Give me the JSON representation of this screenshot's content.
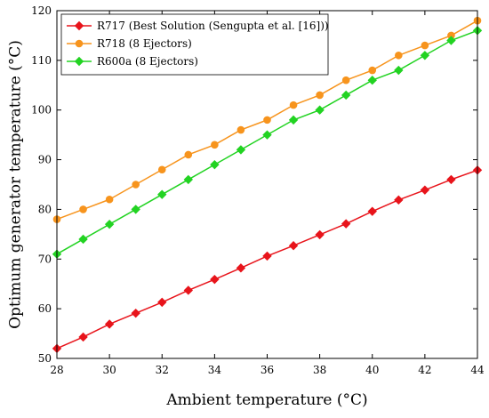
{
  "chart_data": {
    "type": "line",
    "title": "",
    "xlabel": "Ambient temperature (°C)",
    "ylabel": "Optimum generator temperature (°C)",
    "xlim": [
      28,
      44
    ],
    "ylim": [
      50,
      120
    ],
    "xticks": [
      28,
      30,
      32,
      34,
      36,
      38,
      40,
      42,
      44
    ],
    "yticks": [
      50,
      60,
      70,
      80,
      90,
      100,
      110,
      120
    ],
    "grid": false,
    "legend_position": "top-left",
    "x": [
      28,
      29,
      30,
      31,
      32,
      33,
      34,
      35,
      36,
      37,
      38,
      39,
      40,
      41,
      42,
      43,
      44
    ],
    "series": [
      {
        "name": "R717 (Best Solution (Sengupta et al. [16]))",
        "color": "#e8141b",
        "marker": "diamond",
        "values": [
          52,
          54.3,
          56.9,
          59.1,
          61.3,
          63.7,
          65.9,
          68.2,
          70.6,
          72.7,
          74.9,
          77.1,
          79.6,
          81.9,
          83.9,
          86,
          87.9
        ]
      },
      {
        "name": "R718 (8 Ejectors)",
        "color": "#f7941d",
        "marker": "circle",
        "values": [
          78,
          80,
          82,
          85,
          88,
          91,
          93,
          96,
          98,
          101,
          103,
          106,
          108,
          111,
          113,
          115,
          118
        ]
      },
      {
        "name": "R600a (8 Ejectors)",
        "color": "#22d322",
        "marker": "diamond",
        "values": [
          71,
          74,
          77,
          80,
          83,
          86,
          89,
          92,
          95,
          98,
          100,
          103,
          106,
          108,
          111,
          114,
          116
        ]
      }
    ]
  }
}
